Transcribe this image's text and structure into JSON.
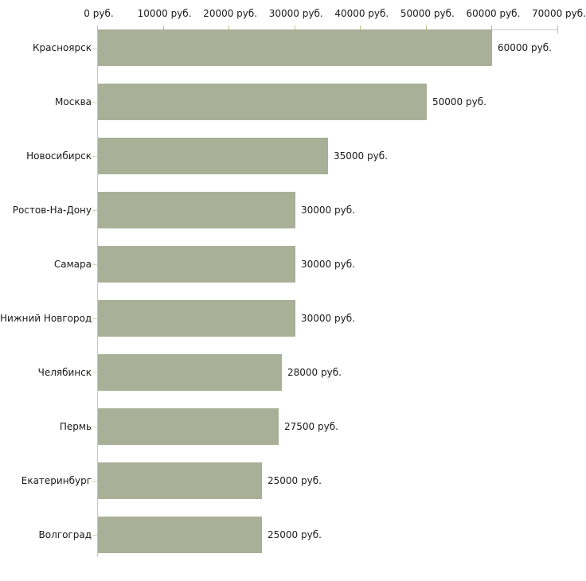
{
  "chart_data": {
    "type": "bar",
    "orientation": "horizontal",
    "title": "",
    "xlabel": "",
    "ylabel": "",
    "grid": "off",
    "legend": "none",
    "categories": [
      "Красноярск",
      "Москва",
      "Новосибирск",
      "Ростов-На-Дону",
      "Самара",
      "Нижний Новгород",
      "Челябинск",
      "Пермь",
      "Екатеринбург",
      "Волгоград"
    ],
    "values": [
      60000,
      50000,
      35000,
      30000,
      30000,
      30000,
      28000,
      27500,
      25000,
      25000
    ],
    "value_labels": [
      "60000 руб.",
      "50000 руб.",
      "35000 руб.",
      "30000 руб.",
      "30000 руб.",
      "30000 руб.",
      "28000 руб.",
      "27500 руб.",
      "25000 руб.",
      "25000 руб."
    ],
    "x_axis": {
      "position": "top",
      "min": 0,
      "max": 70000,
      "tick_step": 10000,
      "tick_values": [
        0,
        10000,
        20000,
        30000,
        40000,
        50000,
        60000,
        70000
      ],
      "tick_labels": [
        "0 руб.",
        "10000 руб.",
        "20000 руб.",
        "30000 руб.",
        "40000 руб.",
        "50000 руб.",
        "60000 руб.",
        "70000 руб."
      ]
    },
    "colors": {
      "bar": "#aab097",
      "axis_line": "#c6c6c6",
      "x_tick": "#c2c083",
      "y_tick": "#d9d2b5",
      "text": "#1a1a1a",
      "background": "#ffffff"
    }
  }
}
